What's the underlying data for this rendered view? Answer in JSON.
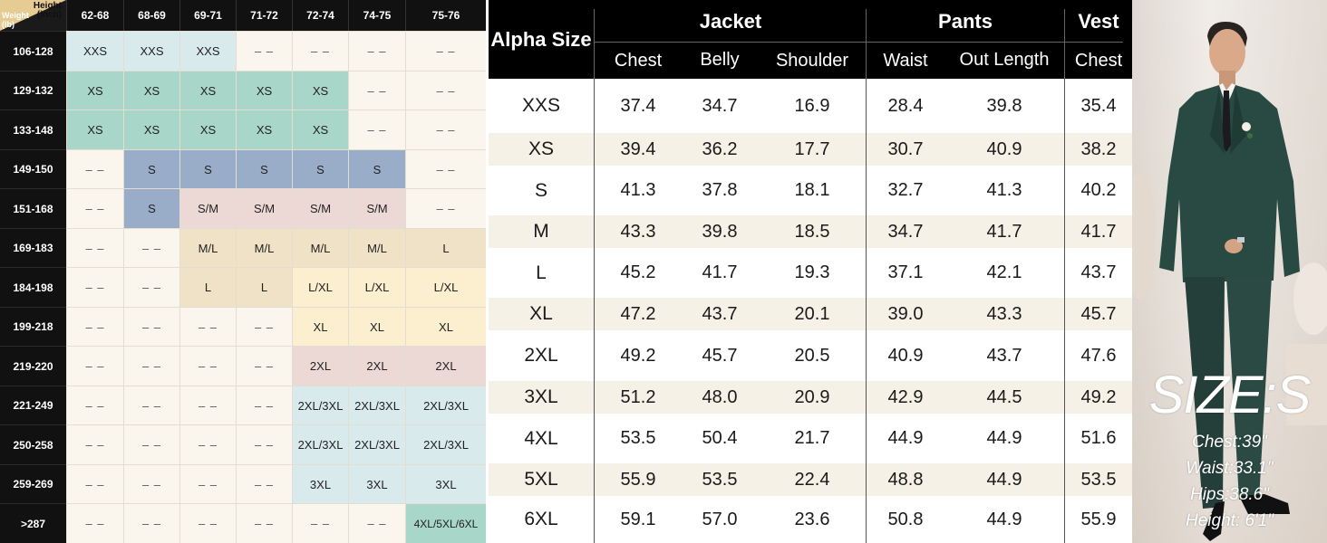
{
  "matrix": {
    "corner": {
      "height_label": "Height\n(inch)",
      "weight_label": "Weight\n(lb)"
    },
    "heights": [
      "62-68",
      "68-69",
      "69-71",
      "71-72",
      "72-74",
      "74-75",
      "75-76"
    ],
    "weights": [
      "106-128",
      "129-132",
      "133-148",
      "149-150",
      "151-168",
      "169-183",
      "184-198",
      "199-218",
      "219-220",
      "221-249",
      "250-258",
      "259-269",
      ">287"
    ],
    "rows": [
      [
        "XXS",
        "XXS",
        "XXS",
        "– –",
        "– –",
        "– –",
        "– –"
      ],
      [
        "XS",
        "XS",
        "XS",
        "XS",
        "XS",
        "– –",
        "– –"
      ],
      [
        "XS",
        "XS",
        "XS",
        "XS",
        "XS",
        "– –",
        "– –"
      ],
      [
        "– –",
        "S",
        "S",
        "S",
        "S",
        "S",
        "– –"
      ],
      [
        "– –",
        "S",
        "S/M",
        "S/M",
        "S/M",
        "S/M",
        "– –"
      ],
      [
        "– –",
        "– –",
        "M/L",
        "M/L",
        "M/L",
        "M/L",
        "L"
      ],
      [
        "– –",
        "– –",
        "L",
        "L",
        "L/XL",
        "L/XL",
        "L/XL"
      ],
      [
        "– –",
        "– –",
        "– –",
        "– –",
        "XL",
        "XL",
        "XL"
      ],
      [
        "– –",
        "– –",
        "– –",
        "– –",
        "2XL",
        "2XL",
        "2XL"
      ],
      [
        "– –",
        "– –",
        "– –",
        "– –",
        "2XL/3XL",
        "2XL/3XL",
        "2XL/3XL"
      ],
      [
        "– –",
        "– –",
        "– –",
        "– –",
        "2XL/3XL",
        "2XL/3XL",
        "2XL/3XL"
      ],
      [
        "– –",
        "– –",
        "– –",
        "– –",
        "3XL",
        "3XL",
        "3XL"
      ],
      [
        "– –",
        "– –",
        "– –",
        "– –",
        "– –",
        "– –",
        "4XL/5XL/6XL"
      ]
    ],
    "colors": {
      "XXS": "#d8eaec",
      "XS": "#a8d6c8",
      "S": "#9aadc8",
      "S/M": "#ecd9d6",
      "M/L": "#f0e2c6",
      "L": "#f0e2c6",
      "L/XL": "#fbefcf",
      "XL": "#fbefcf",
      "2XL": "#ecd9d6",
      "2XL/3XL": "#d8eaec",
      "3XL": "#d8eaec",
      "4XL/5XL/6XL": "#a8d6c8",
      "empty": "#faf6ee"
    }
  },
  "size_table": {
    "alpha_header": "Alpha Size",
    "groups": [
      "Jacket",
      "Pants",
      "Vest"
    ],
    "subheaders": [
      "Chest",
      "Belly",
      "Shoulder",
      "Waist",
      "Out Length",
      "Chest"
    ],
    "rows": [
      [
        "XXS",
        "37.4",
        "34.7",
        "16.9",
        "28.4",
        "39.8",
        "35.4"
      ],
      [
        "XS",
        "39.4",
        "36.2",
        "17.7",
        "30.7",
        "40.9",
        "38.2"
      ],
      [
        "S",
        "41.3",
        "37.8",
        "18.1",
        "32.7",
        "41.3",
        "40.2"
      ],
      [
        "M",
        "43.3",
        "39.8",
        "18.5",
        "34.7",
        "41.7",
        "41.7"
      ],
      [
        "L",
        "45.2",
        "41.7",
        "19.3",
        "37.1",
        "42.1",
        "43.7"
      ],
      [
        "XL",
        "47.2",
        "43.7",
        "20.1",
        "39.0",
        "43.3",
        "45.7"
      ],
      [
        "2XL",
        "49.2",
        "45.7",
        "20.5",
        "40.9",
        "43.7",
        "47.6"
      ],
      [
        "3XL",
        "51.2",
        "48.0",
        "20.9",
        "42.9",
        "44.5",
        "49.2"
      ],
      [
        "4XL",
        "53.5",
        "50.4",
        "21.7",
        "44.9",
        "44.9",
        "51.6"
      ],
      [
        "5XL",
        "55.9",
        "53.5",
        "22.4",
        "48.8",
        "44.9",
        "53.5"
      ],
      [
        "6XL",
        "59.1",
        "57.0",
        "23.6",
        "50.8",
        "44.9",
        "55.9"
      ]
    ]
  },
  "model": {
    "size_title": "SIZE:S",
    "measurements": [
      "Chest:39\"",
      "Waist:33.1\"",
      "Hips:38.6\"",
      "Height: 6'1\""
    ]
  }
}
